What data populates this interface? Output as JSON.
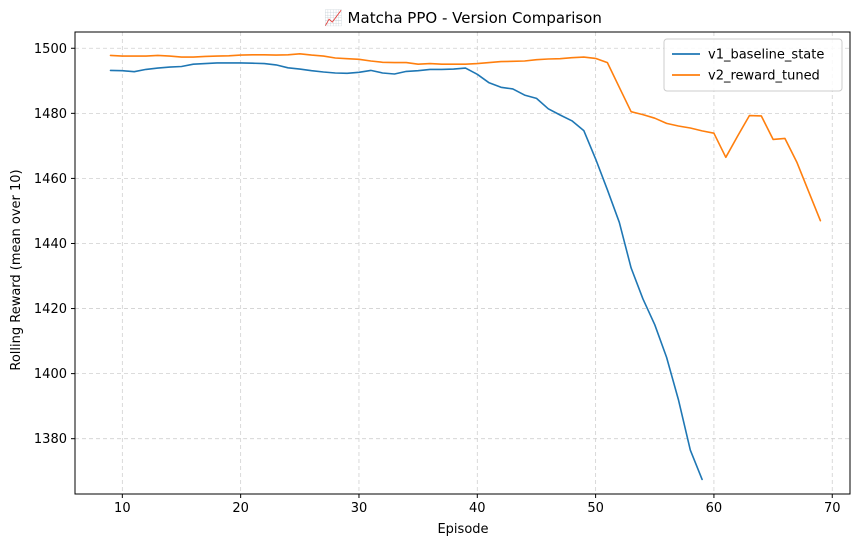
{
  "chart_data": {
    "type": "line",
    "title": "📈 Matcha PPO - Version Comparison",
    "xlabel": "Episode",
    "ylabel": "Rolling Reward (mean over 10)",
    "xlim": [
      6,
      71.5
    ],
    "ylim": [
      1363,
      1505
    ],
    "xticks": [
      10,
      20,
      30,
      40,
      50,
      60,
      70
    ],
    "yticks": [
      1380,
      1400,
      1420,
      1440,
      1460,
      1480,
      1500
    ],
    "grid": true,
    "legend": "top-right",
    "series": [
      {
        "name": "v1_baseline_state",
        "color": "#1f77b4",
        "x": [
          9,
          10,
          11,
          12,
          13,
          14,
          15,
          16,
          17,
          18,
          19,
          20,
          21,
          22,
          23,
          24,
          25,
          26,
          27,
          28,
          29,
          30,
          31,
          32,
          33,
          34,
          35,
          36,
          37,
          38,
          39,
          40,
          41,
          42,
          43,
          44,
          45,
          46,
          47,
          48,
          49,
          50,
          51,
          52,
          53,
          54,
          55,
          56,
          57,
          58,
          59
        ],
        "y": [
          1493.2,
          1493.1,
          1492.8,
          1493.5,
          1493.9,
          1494.2,
          1494.4,
          1495.1,
          1495.3,
          1495.5,
          1495.5,
          1495.5,
          1495.4,
          1495.3,
          1494.9,
          1494.0,
          1493.6,
          1493.1,
          1492.7,
          1492.4,
          1492.3,
          1492.6,
          1493.2,
          1492.4,
          1492.1,
          1492.9,
          1493.1,
          1493.5,
          1493.5,
          1493.6,
          1493.9,
          1492.0,
          1489.4,
          1488.0,
          1487.5,
          1485.6,
          1484.6,
          1481.4,
          1479.5,
          1477.7,
          1474.7,
          1466.0,
          1456.5,
          1446.5,
          1432.5,
          1423.0,
          1415.0,
          1405.0,
          1392.0,
          1376.5,
          1367.5
        ]
      },
      {
        "name": "v2_reward_tuned",
        "color": "#ff7f0e",
        "x": [
          9,
          10,
          11,
          12,
          13,
          14,
          15,
          16,
          17,
          18,
          19,
          20,
          21,
          22,
          23,
          24,
          25,
          26,
          27,
          28,
          29,
          30,
          31,
          32,
          33,
          34,
          35,
          36,
          37,
          38,
          39,
          40,
          41,
          42,
          43,
          44,
          45,
          46,
          47,
          48,
          49,
          50,
          51,
          52,
          53,
          54,
          55,
          56,
          57,
          58,
          59,
          60,
          61,
          62,
          63,
          64,
          65,
          66,
          67,
          68,
          69
        ],
        "y": [
          1497.8,
          1497.6,
          1497.6,
          1497.6,
          1497.8,
          1497.6,
          1497.3,
          1497.3,
          1497.5,
          1497.6,
          1497.7,
          1497.9,
          1498.0,
          1498.0,
          1497.9,
          1498.0,
          1498.3,
          1497.9,
          1497.6,
          1497.0,
          1496.8,
          1496.6,
          1496.1,
          1495.7,
          1495.6,
          1495.6,
          1495.1,
          1495.3,
          1495.1,
          1495.1,
          1495.1,
          1495.3,
          1495.6,
          1495.9,
          1496.0,
          1496.1,
          1496.5,
          1496.7,
          1496.8,
          1497.1,
          1497.3,
          1496.9,
          1495.6,
          1488.0,
          1480.5,
          1479.6,
          1478.5,
          1476.9,
          1476.1,
          1475.5,
          1474.6,
          1473.9,
          1466.5,
          1473.0,
          1479.3,
          1479.2,
          1472.0,
          1472.3,
          1465.0,
          1456.0,
          1447.0
        ]
      }
    ]
  }
}
